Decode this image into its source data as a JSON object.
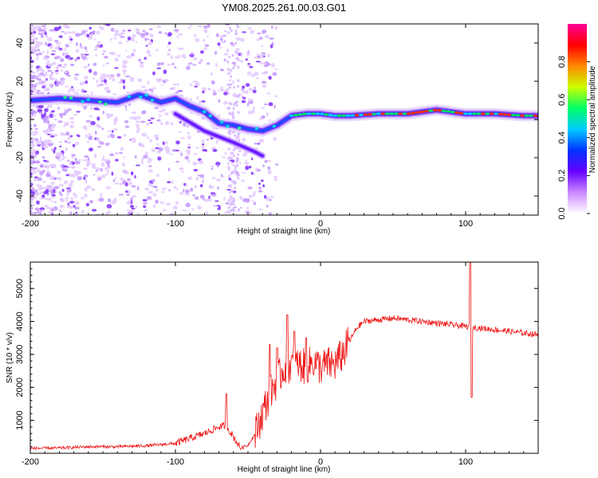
{
  "title": "YM08.2025.261.00.03.G01",
  "chart_data": [
    {
      "type": "heatmap",
      "title": "YM08.2025.261.00.03.G01",
      "xlabel": "Height of straight line (km)",
      "ylabel": "Frequency (Hz)",
      "xlim": [
        -200,
        150
      ],
      "ylim": [
        -50,
        50
      ],
      "xticks": [
        -200,
        -100,
        0,
        100
      ],
      "yticks": [
        -40,
        -20,
        0,
        20,
        40
      ],
      "colorbar": {
        "label": "Normalized spectral amplitude",
        "range": [
          0,
          1
        ],
        "ticks": [
          0.0,
          0.2,
          0.4,
          0.6,
          0.8
        ],
        "colors": [
          "#ffffff",
          "#cc88ff",
          "#6600ff",
          "#0033ff",
          "#00ccff",
          "#00ff66",
          "#ccff00",
          "#ff8800",
          "#ff0000",
          "#ff0099"
        ]
      },
      "ridge": [
        {
          "x": -200,
          "y": 10
        },
        {
          "x": -180,
          "y": 11
        },
        {
          "x": -160,
          "y": 10
        },
        {
          "x": -140,
          "y": 9
        },
        {
          "x": -125,
          "y": 13
        },
        {
          "x": -110,
          "y": 9
        },
        {
          "x": -100,
          "y": 11
        },
        {
          "x": -90,
          "y": 7
        },
        {
          "x": -80,
          "y": 4
        },
        {
          "x": -70,
          "y": -2
        },
        {
          "x": -60,
          "y": -3
        },
        {
          "x": -50,
          "y": -5
        },
        {
          "x": -40,
          "y": -6
        },
        {
          "x": -30,
          "y": -3
        },
        {
          "x": -20,
          "y": 2
        },
        {
          "x": -10,
          "y": 3
        },
        {
          "x": 0,
          "y": 3
        },
        {
          "x": 10,
          "y": 2
        },
        {
          "x": 20,
          "y": 2
        },
        {
          "x": 40,
          "y": 3
        },
        {
          "x": 60,
          "y": 3
        },
        {
          "x": 80,
          "y": 5
        },
        {
          "x": 90,
          "y": 4
        },
        {
          "x": 100,
          "y": 3
        },
        {
          "x": 120,
          "y": 3
        },
        {
          "x": 140,
          "y": 2
        },
        {
          "x": 150,
          "y": 2
        }
      ],
      "secondary_ridge": [
        {
          "x": -100,
          "y": 3
        },
        {
          "x": -80,
          "y": -6
        },
        {
          "x": -60,
          "y": -12
        },
        {
          "x": -45,
          "y": -17
        },
        {
          "x": -40,
          "y": -19
        }
      ]
    },
    {
      "type": "line",
      "title": "",
      "xlabel": "Height of straight line (km)",
      "ylabel": "SNR (10 * v/v)",
      "xlim": [
        -200,
        150
      ],
      "ylim": [
        0,
        5800
      ],
      "xticks": [
        -200,
        -100,
        0,
        100
      ],
      "yticks": [
        1000,
        2000,
        3000,
        4000,
        5000
      ],
      "series": [
        {
          "name": "SNR",
          "color": "#ee1111",
          "points": [
            {
              "x": -200,
              "y": 150
            },
            {
              "x": -180,
              "y": 160
            },
            {
              "x": -160,
              "y": 200
            },
            {
              "x": -140,
              "y": 200
            },
            {
              "x": -120,
              "y": 230
            },
            {
              "x": -100,
              "y": 300
            },
            {
              "x": -90,
              "y": 450
            },
            {
              "x": -80,
              "y": 600
            },
            {
              "x": -75,
              "y": 700
            },
            {
              "x": -70,
              "y": 800
            },
            {
              "x": -65,
              "y": 850
            },
            {
              "x": -60,
              "y": 500
            },
            {
              "x": -55,
              "y": 150
            },
            {
              "x": -50,
              "y": 250
            },
            {
              "x": -45,
              "y": 600
            },
            {
              "x": -40,
              "y": 1200
            },
            {
              "x": -35,
              "y": 1800
            },
            {
              "x": -30,
              "y": 2200
            },
            {
              "x": -25,
              "y": 2600
            },
            {
              "x": -20,
              "y": 2700
            },
            {
              "x": -15,
              "y": 2700
            },
            {
              "x": -10,
              "y": 2600
            },
            {
              "x": -5,
              "y": 2800
            },
            {
              "x": 0,
              "y": 2600
            },
            {
              "x": 5,
              "y": 2700
            },
            {
              "x": 10,
              "y": 2700
            },
            {
              "x": 15,
              "y": 3000
            },
            {
              "x": 20,
              "y": 3400
            },
            {
              "x": 25,
              "y": 3800
            },
            {
              "x": 30,
              "y": 4000
            },
            {
              "x": 40,
              "y": 4050
            },
            {
              "x": 50,
              "y": 4100
            },
            {
              "x": 60,
              "y": 4050
            },
            {
              "x": 70,
              "y": 4000
            },
            {
              "x": 80,
              "y": 3950
            },
            {
              "x": 90,
              "y": 3900
            },
            {
              "x": 100,
              "y": 3850
            },
            {
              "x": 110,
              "y": 3800
            },
            {
              "x": 120,
              "y": 3750
            },
            {
              "x": 130,
              "y": 3700
            },
            {
              "x": 140,
              "y": 3650
            },
            {
              "x": 150,
              "y": 3600
            }
          ],
          "spikes": [
            {
              "x": -65,
              "y": 1800
            },
            {
              "x": -35,
              "y": 3300
            },
            {
              "x": -30,
              "y": 3200
            },
            {
              "x": -23,
              "y": 4200
            },
            {
              "x": -18,
              "y": 3700
            },
            {
              "x": -10,
              "y": 3500
            },
            {
              "x": 103,
              "y": 5900
            },
            {
              "x": 104,
              "y": 1700
            }
          ]
        }
      ]
    }
  ]
}
